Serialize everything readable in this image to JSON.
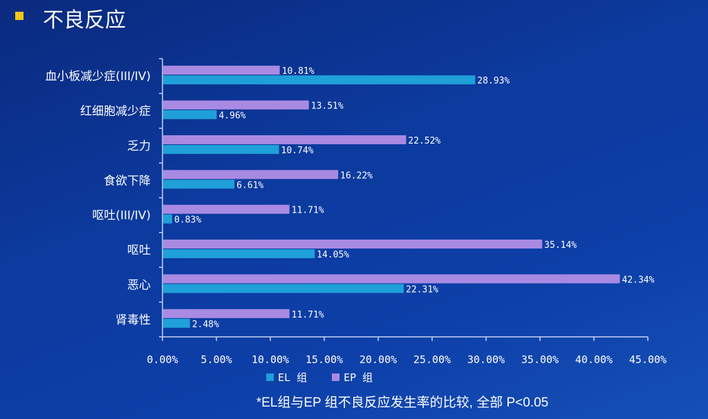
{
  "slide": {
    "title": "不良反应",
    "note": "*EL组与EP 组不良反应发生率的比较, 全部 P<0.05"
  },
  "chart_data": {
    "type": "bar",
    "orientation": "horizontal",
    "categories": [
      "血小板减少症(III/IV)",
      "红细胞减少症",
      "乏力",
      "食欲下降",
      "呕吐(III/IV)",
      "呕吐",
      "恶心",
      "肾毒性"
    ],
    "series": [
      {
        "name": "EP 组",
        "color": "#a98ae2",
        "values": [
          10.81,
          13.51,
          22.52,
          16.22,
          11.71,
          35.14,
          42.34,
          11.71
        ],
        "labels": [
          "10.81%",
          "13.51%",
          "22.52%",
          "16.22%",
          "11.71%",
          "35.14%",
          "42.34%",
          "11.71%"
        ]
      },
      {
        "name": "EL 组",
        "color": "#1fa0d8",
        "values": [
          28.93,
          4.96,
          10.74,
          6.61,
          0.83,
          14.05,
          22.31,
          2.48
        ],
        "labels": [
          "28.93%",
          "4.96%",
          "10.74%",
          "6.61%",
          "0.83%",
          "14.05%",
          "22.31%",
          "2.48%"
        ]
      }
    ],
    "xlim": [
      0,
      45
    ],
    "xticks": [
      "0.00%",
      "5.00%",
      "10.00%",
      "15.00%",
      "20.00%",
      "25.00%",
      "30.00%",
      "35.00%",
      "40.00%",
      "45.00%"
    ],
    "grid": false,
    "legend_position": "bottom",
    "legend": [
      {
        "name": "EL 组",
        "color": "#1fa0d8"
      },
      {
        "name": "EP 组",
        "color": "#a98ae2"
      }
    ]
  }
}
